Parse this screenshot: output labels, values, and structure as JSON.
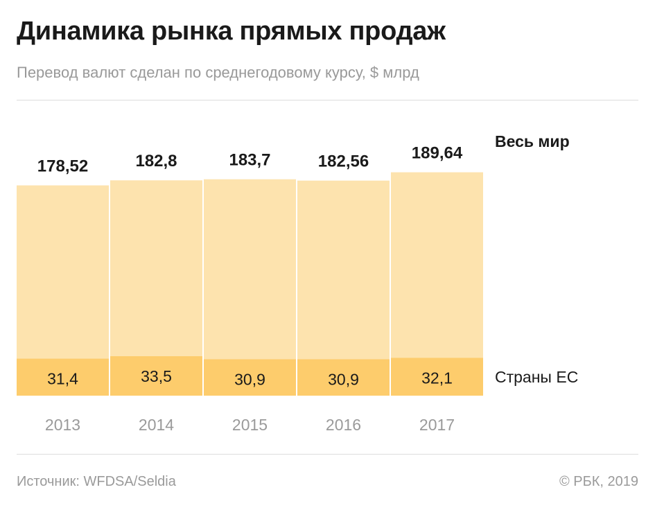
{
  "title": "Динамика рынка прямых продаж",
  "subtitle": "Перевод валют сделан по среднегодовому курсу, $ млрд",
  "source": "Источник: WFDSA/Seldia",
  "copyright": "© РБК, 2019",
  "colors": {
    "world": "#fde3ae",
    "eu": "#fdcc6c",
    "axis_text": "#9a9a9a",
    "value_text": "#1a1a1a"
  },
  "chart_data": {
    "type": "bar",
    "categories": [
      "2013",
      "2014",
      "2015",
      "2016",
      "2017"
    ],
    "series": [
      {
        "name": "Весь мир",
        "values": [
          178.52,
          182.8,
          183.7,
          182.56,
          189.64
        ],
        "labels": [
          "178,52",
          "182,8",
          "183,7",
          "182,56",
          "189,64"
        ]
      },
      {
        "name": "Страны ЕС",
        "values": [
          31.4,
          33.5,
          30.9,
          30.9,
          32.1
        ],
        "labels": [
          "31,4",
          "33,5",
          "30,9",
          "30,9",
          "32,1"
        ]
      }
    ],
    "legend_position": "right",
    "grid": false
  }
}
